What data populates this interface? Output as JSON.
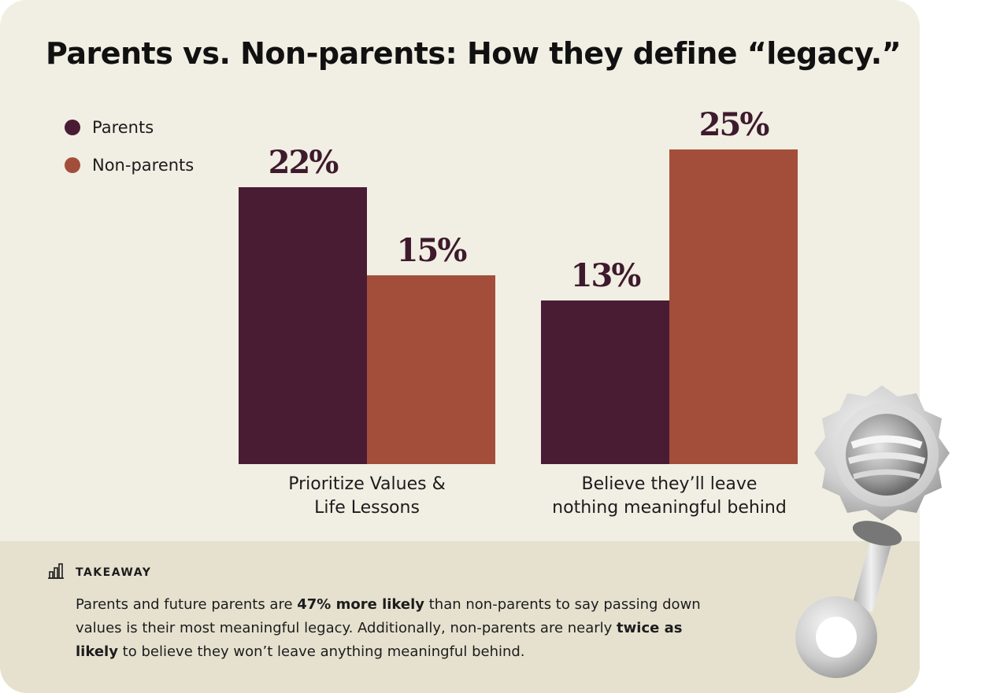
{
  "title": "Parents vs. Non-parents: How they define “legacy.”",
  "colors": {
    "parents": "#4a1c34",
    "non_parents": "#a24e3b",
    "background": "#f1eee3",
    "takeaway_bg": "#e6e1cf"
  },
  "chart_data": {
    "type": "bar",
    "categories": [
      "Prioritize Values & Life Lessons",
      "Believe they’ll leave nothing meaningful behind"
    ],
    "category_lines": [
      [
        "Prioritize Values &",
        "Life Lessons"
      ],
      [
        "Believe they’ll leave",
        "nothing meaningful behind"
      ]
    ],
    "series": [
      {
        "name": "Parents",
        "values": [
          22,
          13
        ],
        "labels": [
          "22%",
          "13%"
        ],
        "color": "#4a1c34"
      },
      {
        "name": "Non-parents",
        "values": [
          15,
          25
        ],
        "labels": [
          "15%",
          "25%"
        ],
        "color": "#a24e3b"
      }
    ],
    "unit": "%",
    "ylim": [
      0,
      25
    ],
    "grid": false,
    "legend": "top-left"
  },
  "takeaway": {
    "heading": "TAKEAWAY",
    "text_1": "Parents and future parents are ",
    "bold_1": "47% more likely",
    "text_2": " than non-parents to say passing down values is their most meaningful legacy. Additionally, non-parents are nearly ",
    "bold_2": "twice as likely",
    "text_3": " to believe they won’t leave anything meaningful behind."
  },
  "icons": {
    "takeaway": "bar-chart-icon",
    "decoration": "baby-rattle-icon"
  }
}
